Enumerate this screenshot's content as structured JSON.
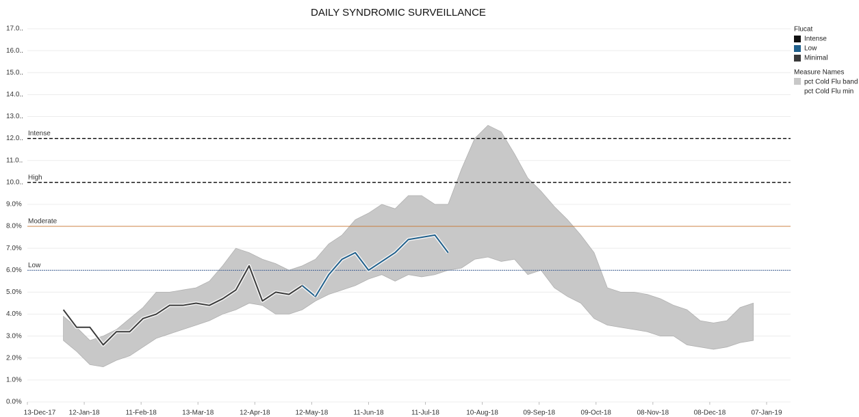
{
  "chart_data": {
    "type": "band-line",
    "title": "DAILY SYNDROMIC SURVEILLANCE",
    "x": [
      "01-Jan-18",
      "08-Jan-18",
      "15-Jan-18",
      "22-Jan-18",
      "29-Jan-18",
      "05-Feb-18",
      "12-Feb-18",
      "19-Feb-18",
      "26-Feb-18",
      "05-Mar-18",
      "12-Mar-18",
      "19-Mar-18",
      "26-Mar-18",
      "02-Apr-18",
      "09-Apr-18",
      "16-Apr-18",
      "23-Apr-18",
      "30-Apr-18",
      "07-May-18",
      "14-May-18",
      "21-May-18",
      "28-May-18",
      "04-Jun-18",
      "11-Jun-18",
      "18-Jun-18",
      "25-Jun-18",
      "02-Jul-18",
      "09-Jul-18",
      "16-Jul-18",
      "23-Jul-18",
      "30-Jul-18",
      "06-Aug-18",
      "13-Aug-18",
      "20-Aug-18",
      "27-Aug-18",
      "03-Sep-18",
      "10-Sep-18",
      "17-Sep-18",
      "24-Sep-18",
      "01-Oct-18",
      "08-Oct-18",
      "15-Oct-18",
      "22-Oct-18",
      "29-Oct-18",
      "05-Nov-18",
      "12-Nov-18",
      "19-Nov-18",
      "26-Nov-18",
      "03-Dec-18",
      "10-Dec-18",
      "17-Dec-18",
      "24-Dec-18",
      "31-Dec-18"
    ],
    "band": {
      "name": "pct Cold Flu band",
      "color": "#c8c8c8",
      "upper": [
        3.9,
        3.4,
        2.8,
        3.0,
        3.3,
        3.8,
        4.3,
        5.0,
        5.0,
        5.1,
        5.2,
        5.5,
        6.2,
        7.0,
        6.8,
        6.5,
        6.3,
        6.0,
        6.2,
        6.5,
        7.2,
        7.6,
        8.3,
        8.6,
        9.0,
        8.8,
        9.4,
        9.4,
        9.0,
        9.0,
        10.6,
        12.0,
        12.6,
        12.3,
        11.3,
        10.2,
        9.6,
        8.9,
        8.3,
        7.6,
        6.8,
        5.2,
        5.0,
        5.0,
        4.9,
        4.7,
        4.4,
        4.2,
        3.7,
        3.6,
        3.7,
        4.3,
        4.5
      ],
      "lower": [
        2.8,
        2.3,
        1.7,
        1.6,
        1.9,
        2.1,
        2.5,
        2.9,
        3.1,
        3.3,
        3.5,
        3.7,
        4.0,
        4.2,
        4.5,
        4.4,
        4.0,
        4.0,
        4.2,
        4.6,
        4.9,
        5.1,
        5.3,
        5.6,
        5.8,
        5.5,
        5.8,
        5.7,
        5.8,
        6.0,
        6.1,
        6.5,
        6.6,
        6.4,
        6.5,
        5.8,
        6.0,
        5.2,
        4.8,
        4.5,
        3.8,
        3.5,
        3.4,
        3.3,
        3.2,
        3.0,
        3.0,
        2.6,
        2.5,
        2.4,
        2.5,
        2.7,
        2.8
      ]
    },
    "line": {
      "name": "pct Cold Flu min",
      "values": [
        4.2,
        3.4,
        3.4,
        2.6,
        3.2,
        3.2,
        3.8,
        4.0,
        4.4,
        4.4,
        4.5,
        4.4,
        4.7,
        5.1,
        6.2,
        4.6,
        5.0,
        4.9,
        5.3,
        4.8,
        5.8,
        6.5,
        6.8,
        6.0,
        6.4,
        6.8,
        7.4,
        7.5,
        7.6,
        6.8,
        null,
        null,
        null,
        null,
        null,
        null,
        null,
        null,
        null,
        null,
        null,
        null,
        null,
        null,
        null,
        null,
        null,
        null,
        null,
        null,
        null,
        null,
        null
      ],
      "flucat": [
        "Minimal",
        "Minimal",
        "Minimal",
        "Minimal",
        "Minimal",
        "Minimal",
        "Minimal",
        "Minimal",
        "Minimal",
        "Minimal",
        "Minimal",
        "Minimal",
        "Minimal",
        "Minimal",
        "Minimal",
        "Minimal",
        "Minimal",
        "Minimal",
        "Minimal",
        "Low",
        "Low",
        "Low",
        "Low",
        "Low",
        "Low",
        "Low",
        "Low",
        "Low",
        "Low",
        "Low",
        null,
        null,
        null,
        null,
        null,
        null,
        null,
        null,
        null,
        null,
        null,
        null,
        null,
        null,
        null,
        null,
        null,
        null,
        null,
        null,
        null,
        null,
        null
      ]
    },
    "flucat_legend": {
      "title": "Flucat",
      "items": [
        {
          "name": "Intense",
          "color": "#111111"
        },
        {
          "name": "Low",
          "color": "#1f5f8b"
        },
        {
          "name": "Minimal",
          "color": "#3a3a3a"
        }
      ]
    },
    "measure_legend_title": "Measure Names",
    "ref_lines": [
      {
        "label": "Intense",
        "value": 12,
        "color": "#000000"
      },
      {
        "label": "High",
        "value": 10,
        "color": "#000000"
      },
      {
        "label": "Moderate",
        "value": 8,
        "color": "#c8742c"
      },
      {
        "label": "Low",
        "value": 6,
        "color": "#2a4f8a"
      }
    ],
    "xlim": [
      "13-Dec-17",
      "07-Jan-19"
    ],
    "xticks": [
      "13-Dec-17",
      "12-Jan-18",
      "11-Feb-18",
      "13-Mar-18",
      "12-Apr-18",
      "12-May-18",
      "11-Jun-18",
      "11-Jul-18",
      "10-Aug-18",
      "09-Sep-18",
      "09-Oct-18",
      "08-Nov-18",
      "08-Dec-18",
      "07-Jan-19"
    ],
    "ylim": [
      0,
      17
    ],
    "yticks": [
      {
        "value": 0,
        "label": "0.0%"
      },
      {
        "value": 1,
        "label": "1.0%"
      },
      {
        "value": 2,
        "label": "2.0%"
      },
      {
        "value": 3,
        "label": "3.0%"
      },
      {
        "value": 4,
        "label": "4.0%"
      },
      {
        "value": 5,
        "label": "5.0%"
      },
      {
        "value": 6,
        "label": "6.0%"
      },
      {
        "value": 7,
        "label": "7.0%"
      },
      {
        "value": 8,
        "label": "8.0%"
      },
      {
        "value": 9,
        "label": "9.0%"
      },
      {
        "value": 10,
        "label": "10.0.."
      },
      {
        "value": 11,
        "label": "11.0.."
      },
      {
        "value": 12,
        "label": "12.0.."
      },
      {
        "value": 13,
        "label": "13.0.."
      },
      {
        "value": 14,
        "label": "14.0.."
      },
      {
        "value": 15,
        "label": "15.0.."
      },
      {
        "value": 16,
        "label": "16.0.."
      },
      {
        "value": 17,
        "label": "17.0.."
      }
    ],
    "grid": true
  }
}
